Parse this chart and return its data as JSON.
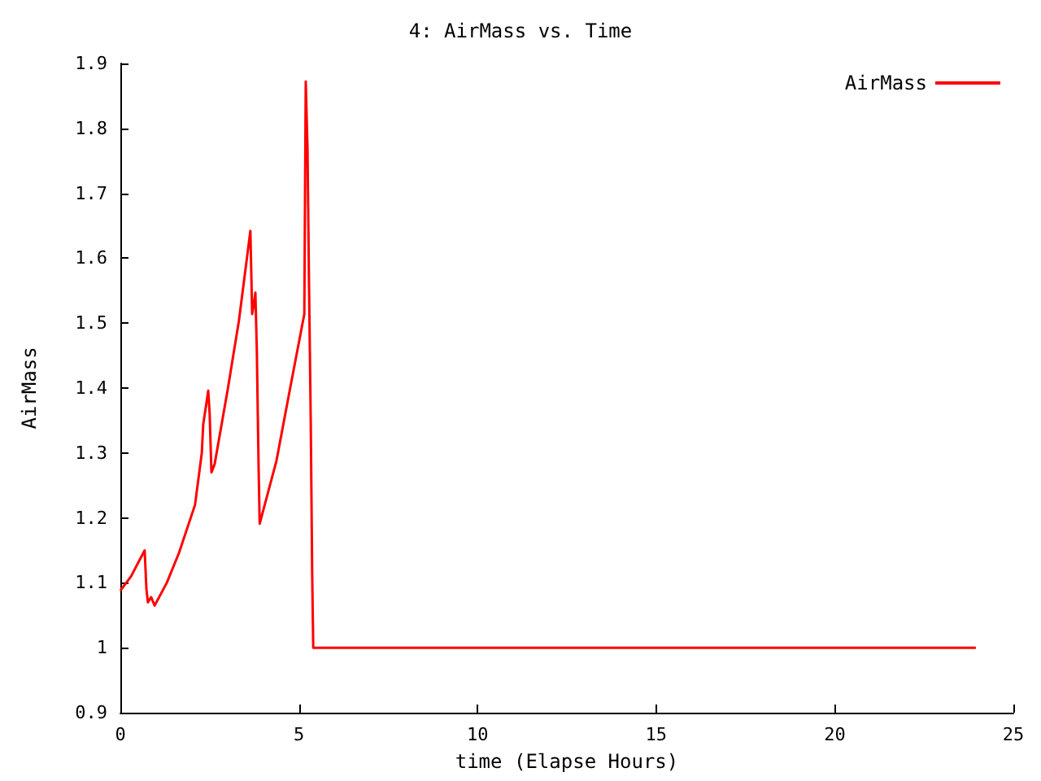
{
  "chart_data": {
    "type": "line",
    "title": "4: AirMass vs. Time",
    "xlabel": "time (Elapse Hours)",
    "ylabel": "AirMass",
    "legend": "top right",
    "grid": false,
    "xlim": [
      0,
      25
    ],
    "xticks": [
      0,
      5,
      10,
      15,
      20,
      25
    ],
    "ylim": [
      0.9,
      1.9
    ],
    "yticks": [
      0.9,
      1,
      1.1,
      1.2,
      1.3,
      1.4,
      1.5,
      1.6,
      1.7,
      1.8,
      1.9
    ],
    "series": [
      {
        "name": "AirMass",
        "color": "#ff0000",
        "x": [
          0,
          0.3,
          0.68,
          0.73,
          0.77,
          0.86,
          0.96,
          1.3,
          1.64,
          2.09,
          2.28,
          2.32,
          2.46,
          2.5,
          2.55,
          2.64,
          3.0,
          3.32,
          3.64,
          3.69,
          3.74,
          3.78,
          3.82,
          3.87,
          3.9,
          4.37,
          4.74,
          5.15,
          5.19,
          5.24,
          5.28,
          5.33,
          5.37,
          5.4,
          23.95
        ],
        "values": [
          1.088,
          1.11,
          1.15,
          1.09,
          1.07,
          1.078,
          1.065,
          1.1,
          1.146,
          1.22,
          1.3,
          1.344,
          1.396,
          1.36,
          1.27,
          1.283,
          1.396,
          1.504,
          1.642,
          1.514,
          1.53,
          1.547,
          1.459,
          1.278,
          1.191,
          1.288,
          1.396,
          1.514,
          1.872,
          1.767,
          1.567,
          1.349,
          1.115,
          1.0,
          1.0
        ]
      }
    ]
  }
}
